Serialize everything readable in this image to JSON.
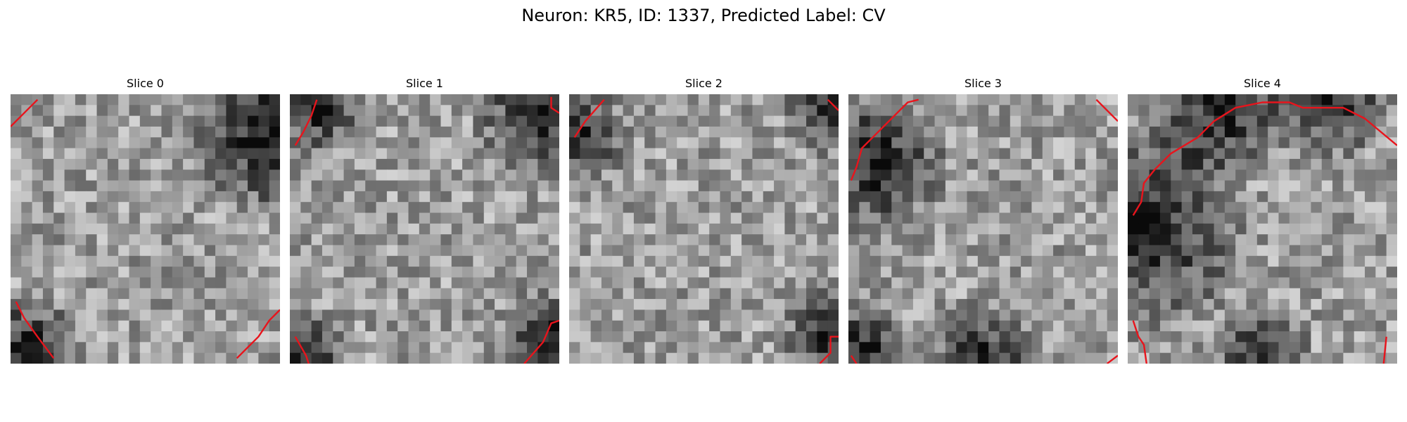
{
  "figure": {
    "title": "Neuron: KR5, ID: 1337, Predicted Label: CV",
    "contour_color": "#e8141c",
    "colormap": "gray",
    "grid_size": 25
  },
  "slices": [
    {
      "label": "Slice 0",
      "seed": 11,
      "dark": [
        [
          0.95,
          0.15,
          0.35
        ],
        [
          0.05,
          0.95,
          0.25
        ]
      ],
      "contours": [
        [
          [
            0.0,
            0.12
          ],
          [
            0.05,
            0.07
          ],
          [
            0.1,
            0.02
          ]
        ],
        [
          [
            0.02,
            0.77
          ],
          [
            0.05,
            0.83
          ],
          [
            0.1,
            0.9
          ],
          [
            0.16,
            0.98
          ]
        ],
        [
          [
            0.84,
            0.98
          ],
          [
            0.92,
            0.9
          ],
          [
            0.96,
            0.84
          ],
          [
            1.0,
            0.8
          ]
        ]
      ]
    },
    {
      "label": "Slice 1",
      "seed": 23,
      "dark": [
        [
          0.95,
          0.05,
          0.3
        ],
        [
          0.1,
          0.05,
          0.2
        ],
        [
          0.05,
          0.97,
          0.2
        ],
        [
          0.95,
          0.9,
          0.2
        ]
      ],
      "contours": [
        [
          [
            0.02,
            0.19
          ],
          [
            0.05,
            0.14
          ],
          [
            0.08,
            0.08
          ],
          [
            0.1,
            0.02
          ]
        ],
        [
          [
            0.97,
            0.01
          ],
          [
            0.97,
            0.05
          ],
          [
            1.0,
            0.07
          ]
        ],
        [
          [
            0.02,
            0.9
          ],
          [
            0.06,
            0.97
          ],
          [
            0.07,
            1.0
          ]
        ],
        [
          [
            0.87,
            1.0
          ],
          [
            0.94,
            0.92
          ],
          [
            0.97,
            0.85
          ],
          [
            1.0,
            0.84
          ]
        ]
      ]
    },
    {
      "label": "Slice 2",
      "seed": 37,
      "dark": [
        [
          0.97,
          0.05,
          0.2
        ],
        [
          0.04,
          0.15,
          0.2
        ],
        [
          0.97,
          0.9,
          0.2
        ]
      ],
      "contours": [
        [
          [
            0.02,
            0.16
          ],
          [
            0.06,
            0.1
          ],
          [
            0.13,
            0.02
          ]
        ],
        [
          [
            0.96,
            0.02
          ],
          [
            1.0,
            0.06
          ]
        ],
        [
          [
            0.93,
            1.0
          ],
          [
            0.97,
            0.96
          ],
          [
            0.97,
            0.9
          ],
          [
            1.0,
            0.9
          ]
        ]
      ]
    },
    {
      "label": "Slice 3",
      "seed": 51,
      "dark": [
        [
          0.1,
          0.25,
          0.3
        ],
        [
          0.5,
          1.0,
          0.25
        ],
        [
          0.05,
          0.95,
          0.2
        ]
      ],
      "contours": [
        [
          [
            0.01,
            0.32
          ],
          [
            0.03,
            0.27
          ],
          [
            0.05,
            0.2
          ],
          [
            0.09,
            0.16
          ],
          [
            0.16,
            0.09
          ],
          [
            0.22,
            0.03
          ],
          [
            0.26,
            0.02
          ]
        ],
        [
          [
            0.92,
            0.02
          ],
          [
            1.0,
            0.1
          ]
        ],
        [
          [
            0.01,
            0.97
          ],
          [
            0.03,
            1.0
          ]
        ],
        [
          [
            0.96,
            1.0
          ],
          [
            1.0,
            0.97
          ]
        ]
      ]
    },
    {
      "label": "Slice 4",
      "seed": 77,
      "dark": [
        [
          0.05,
          0.5,
          0.45
        ],
        [
          0.35,
          0.05,
          0.3
        ],
        [
          0.75,
          0.02,
          0.25
        ],
        [
          0.5,
          0.95,
          0.2
        ]
      ],
      "contours": [
        [
          [
            0.02,
            0.45
          ],
          [
            0.05,
            0.4
          ],
          [
            0.06,
            0.33
          ],
          [
            0.1,
            0.28
          ],
          [
            0.16,
            0.22
          ],
          [
            0.26,
            0.16
          ],
          [
            0.32,
            0.1
          ],
          [
            0.4,
            0.05
          ],
          [
            0.5,
            0.03
          ],
          [
            0.6,
            0.03
          ],
          [
            0.65,
            0.05
          ],
          [
            0.8,
            0.05
          ],
          [
            0.88,
            0.09
          ],
          [
            1.0,
            0.19
          ]
        ],
        [
          [
            0.02,
            0.84
          ],
          [
            0.04,
            0.9
          ],
          [
            0.06,
            0.93
          ],
          [
            0.07,
            1.0
          ]
        ],
        [
          [
            0.95,
            1.0
          ],
          [
            0.96,
            0.9
          ]
        ]
      ]
    }
  ]
}
